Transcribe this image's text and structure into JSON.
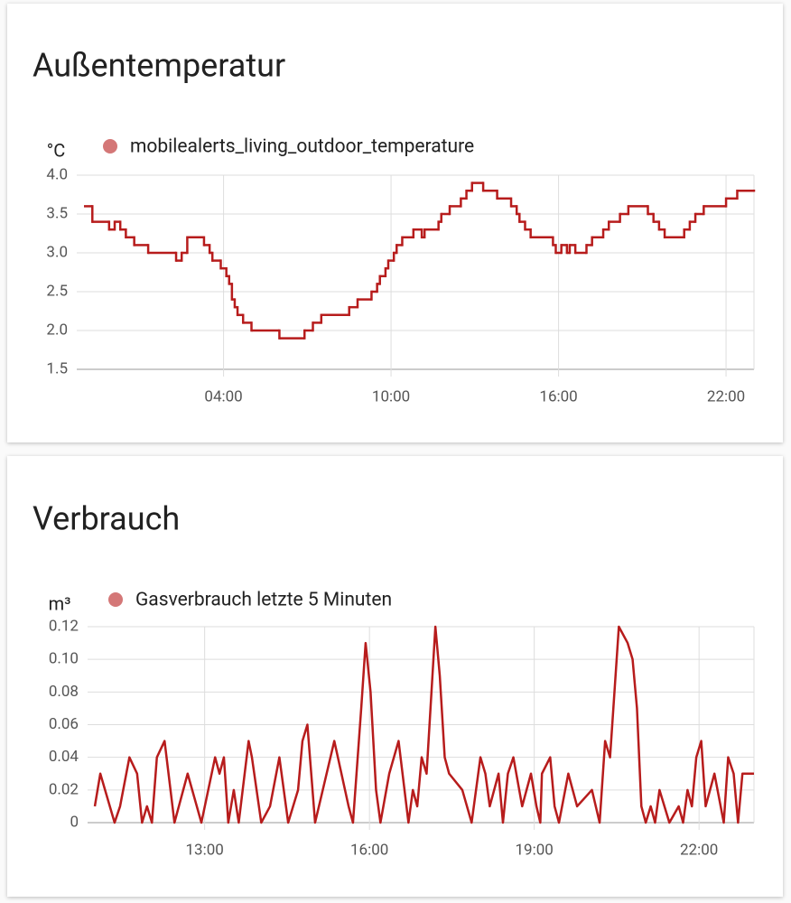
{
  "chart_data": [
    {
      "type": "line",
      "step": true,
      "title": "Außentemperatur",
      "ylabel": "°C",
      "grid": true,
      "x": [
        -1.0,
        -0.7,
        -0.1,
        0.1,
        0.3,
        0.5,
        0.8,
        1.3,
        2.3,
        2.5,
        2.7,
        3.3,
        3.5,
        3.6,
        3.9,
        4.1,
        4.2,
        4.3,
        4.4,
        4.5,
        4.7,
        5.0,
        6.0,
        6.9,
        7.2,
        7.5,
        8.5,
        8.8,
        9.3,
        9.5,
        9.6,
        9.8,
        9.9,
        10.1,
        10.2,
        10.4,
        10.8,
        11.1,
        11.2,
        11.7,
        11.8,
        12.1,
        12.5,
        12.7,
        12.9,
        13.3,
        13.8,
        14.3,
        14.5,
        14.6,
        14.8,
        15.0,
        15.8,
        15.9,
        16.1,
        16.3,
        16.4,
        16.6,
        17.0,
        17.2,
        17.6,
        17.8,
        18.2,
        18.5,
        19.2,
        19.4,
        19.6,
        19.8,
        20.5,
        20.7,
        20.9,
        21.2,
        22.0,
        22.4,
        23.0
      ],
      "series": [
        {
          "name": "mobilealerts_living_outdoor_temperature",
          "color": "#b71c1c",
          "values": [
            3.6,
            3.4,
            3.3,
            3.4,
            3.3,
            3.2,
            3.1,
            3.0,
            2.9,
            3.0,
            3.2,
            3.1,
            3.0,
            2.9,
            2.8,
            2.7,
            2.6,
            2.4,
            2.3,
            2.2,
            2.1,
            2.0,
            1.9,
            2.0,
            2.1,
            2.2,
            2.3,
            2.4,
            2.5,
            2.6,
            2.7,
            2.8,
            2.9,
            3.0,
            3.1,
            3.2,
            3.3,
            3.2,
            3.3,
            3.4,
            3.5,
            3.6,
            3.7,
            3.8,
            3.9,
            3.8,
            3.7,
            3.6,
            3.5,
            3.4,
            3.3,
            3.2,
            3.1,
            3.0,
            3.1,
            3.0,
            3.1,
            3.0,
            3.1,
            3.2,
            3.3,
            3.4,
            3.5,
            3.6,
            3.5,
            3.4,
            3.3,
            3.2,
            3.3,
            3.4,
            3.5,
            3.6,
            3.7,
            3.8,
            3.8
          ]
        }
      ],
      "xlim": [
        -1,
        23
      ],
      "xticks": [
        {
          "value": 4,
          "label": "04:00"
        },
        {
          "value": 10,
          "label": "10:00"
        },
        {
          "value": 16,
          "label": "16:00"
        },
        {
          "value": 22,
          "label": "22:00"
        }
      ],
      "ylim": [
        1.5,
        4.0
      ],
      "yticks": [
        1.5,
        {
          "value": 2,
          "label": "2.0"
        },
        2.5,
        {
          "value": 3,
          "label": "3.0"
        },
        3.5,
        {
          "value": 4,
          "label": "4.0"
        }
      ]
    },
    {
      "type": "line",
      "step": false,
      "title": "Verbrauch",
      "ylabel": "m³",
      "grid": true,
      "x": [
        11.0,
        11.1,
        11.36,
        11.46,
        11.63,
        11.77,
        11.86,
        11.95,
        12.04,
        12.13,
        12.27,
        12.45,
        12.69,
        12.94,
        13.19,
        13.27,
        13.35,
        13.43,
        13.53,
        13.62,
        13.8,
        13.86,
        14.03,
        14.19,
        14.36,
        14.52,
        14.7,
        14.78,
        14.87,
        15.01,
        15.36,
        15.62,
        15.7,
        15.85,
        15.93,
        16.02,
        16.12,
        16.2,
        16.36,
        16.53,
        16.71,
        16.79,
        16.87,
        16.95,
        17.04,
        17.2,
        17.28,
        17.37,
        17.45,
        17.69,
        17.86,
        18.02,
        18.11,
        18.19,
        18.35,
        18.43,
        18.52,
        18.62,
        18.78,
        18.94,
        19.04,
        19.11,
        19.14,
        19.29,
        19.37,
        19.45,
        19.62,
        19.78,
        20.05,
        20.19,
        20.29,
        20.38,
        20.54,
        20.7,
        20.79,
        20.87,
        20.95,
        21.03,
        21.12,
        21.2,
        21.28,
        21.46,
        21.63,
        21.71,
        21.79,
        21.87,
        21.95,
        22.04,
        22.12,
        22.28,
        22.45,
        22.53,
        22.63,
        22.71,
        22.79,
        23.0
      ],
      "series": [
        {
          "name": "Gasverbrauch letzte 5 Minuten",
          "color": "#b71c1c",
          "values": [
            0.01,
            0.03,
            0,
            0.01,
            0.04,
            0.03,
            0,
            0.01,
            0,
            0.04,
            0.05,
            0,
            0.03,
            0,
            0.04,
            0.03,
            0.04,
            0,
            0.02,
            0,
            0.05,
            0.04,
            0,
            0.01,
            0.04,
            0,
            0.02,
            0.05,
            0.06,
            0,
            0.05,
            0.01,
            0,
            0.07,
            0.11,
            0.08,
            0.02,
            0,
            0.03,
            0.05,
            0,
            0.02,
            0.01,
            0.04,
            0.03,
            0.12,
            0.09,
            0.04,
            0.03,
            0.02,
            0,
            0.04,
            0.03,
            0.01,
            0.03,
            0,
            0.03,
            0.04,
            0.01,
            0.03,
            0.01,
            0,
            0.03,
            0.04,
            0.01,
            0,
            0.03,
            0.01,
            0.02,
            0,
            0.05,
            0.04,
            0.12,
            0.11,
            0.1,
            0.07,
            0.01,
            0,
            0.01,
            0,
            0.02,
            0,
            0.01,
            0,
            0.02,
            0.01,
            0.04,
            0.05,
            0.01,
            0.03,
            0,
            0.04,
            0.03,
            0,
            0.03,
            0.03
          ]
        }
      ],
      "xlim": [
        11,
        23
      ],
      "xticks": [
        {
          "value": 13,
          "label": "13:00"
        },
        {
          "value": 16,
          "label": "16:00"
        },
        {
          "value": 19,
          "label": "19:00"
        },
        {
          "value": 22,
          "label": "22:00"
        }
      ],
      "ylim": [
        0,
        0.12
      ],
      "yticks": [
        0,
        0.02,
        0.04,
        0.06,
        0.08,
        {
          "value": 0.1,
          "label": "0.10"
        },
        0.12
      ]
    }
  ]
}
